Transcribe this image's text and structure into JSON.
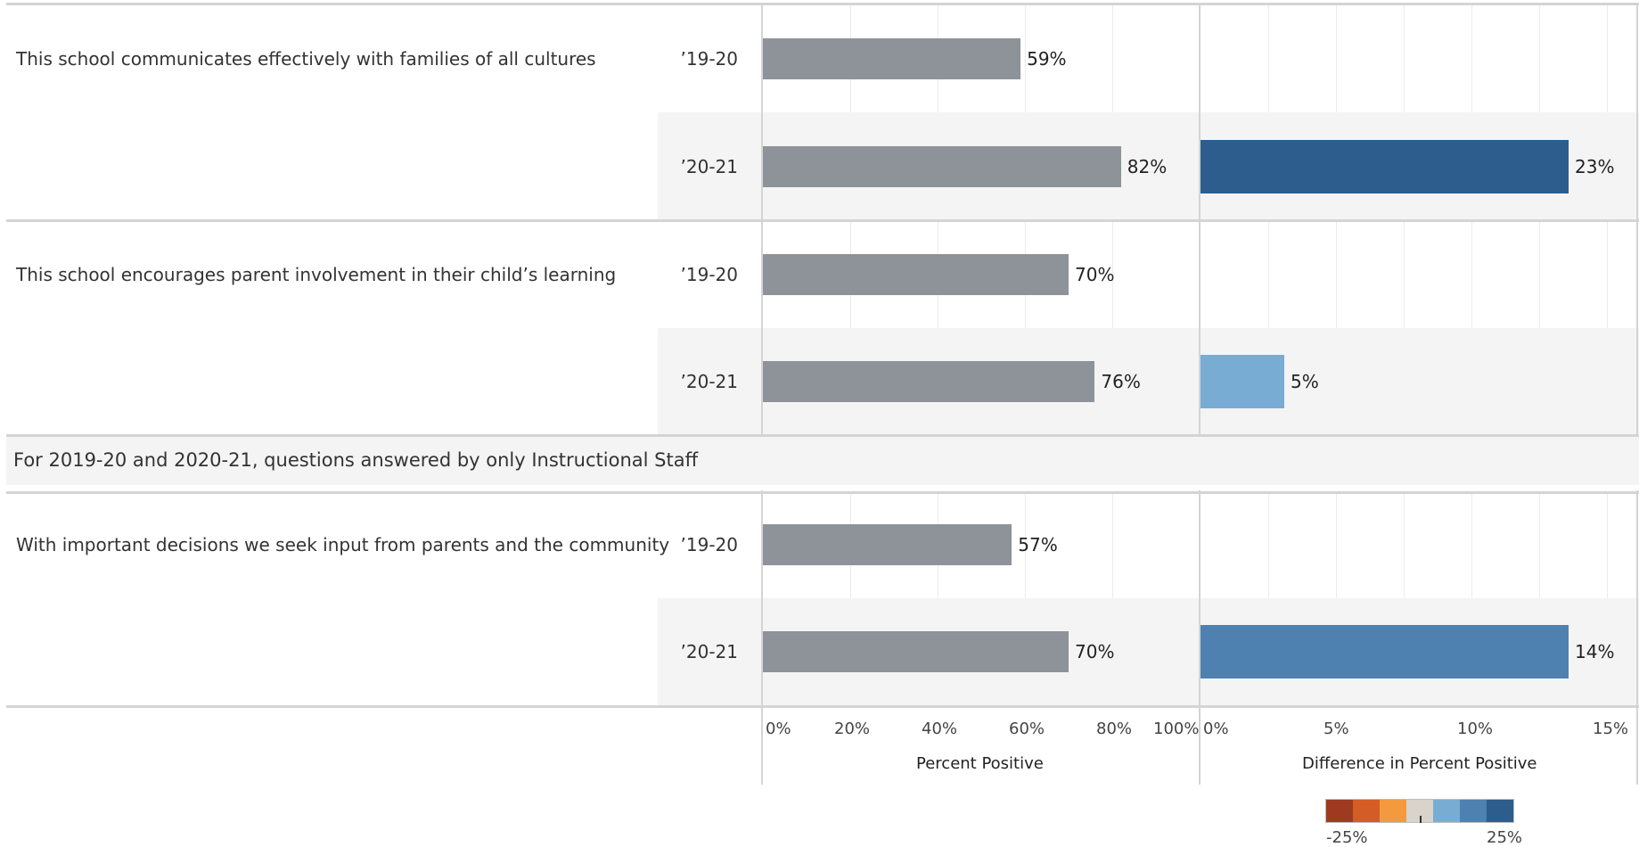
{
  "chart_data": {
    "type": "bar",
    "section_header": "For 2019-20 and 2020-21, questions answered by only Instructional Staff",
    "x_axis_percent": {
      "title": "Percent Positive",
      "ticks": [
        "0%",
        "20%",
        "40%",
        "60%",
        "80%",
        "100%"
      ],
      "xlim": [
        0,
        100
      ]
    },
    "x_axis_diff": {
      "title": "Difference in Percent Positive",
      "ticks": [
        "0%",
        "5%",
        "10%",
        "15%"
      ],
      "xlim": [
        0,
        16
      ]
    },
    "questions": [
      {
        "text": "This school communicates effectively with families of all cultures",
        "rows": [
          {
            "year": "’19-20",
            "percent": 59,
            "percent_label": "59%",
            "diff": null,
            "diff_label": ""
          },
          {
            "year": "’20-21",
            "percent": 82,
            "percent_label": "82%",
            "diff": 23,
            "diff_label": "23%",
            "diff_color": "#2c5d8c"
          }
        ]
      },
      {
        "text": "This school encourages parent involvement in their child’s learning",
        "rows": [
          {
            "year": "’19-20",
            "percent": 70,
            "percent_label": "70%",
            "diff": null,
            "diff_label": ""
          },
          {
            "year": "’20-21",
            "percent": 76,
            "percent_label": "76%",
            "diff": 5,
            "diff_label": "5%",
            "diff_color": "#79acd3"
          }
        ]
      },
      {
        "text": "With important decisions we seek input from parents and the community",
        "rows": [
          {
            "year": "’19-20",
            "percent": 57,
            "percent_label": "57%",
            "diff": null,
            "diff_label": ""
          },
          {
            "year": "’20-21",
            "percent": 70,
            "percent_label": "70%",
            "diff": 14,
            "diff_label": "14%",
            "diff_color": "#4e81b0"
          }
        ]
      }
    ],
    "bar_color": "#8d9399",
    "legend": {
      "min_label": "-25%",
      "max_label": "25%",
      "colors": [
        "#9e3a1f",
        "#d45d26",
        "#f49a3e",
        "#d8d4cb",
        "#79acd3",
        "#4e81b0",
        "#2c5d8c"
      ]
    }
  }
}
